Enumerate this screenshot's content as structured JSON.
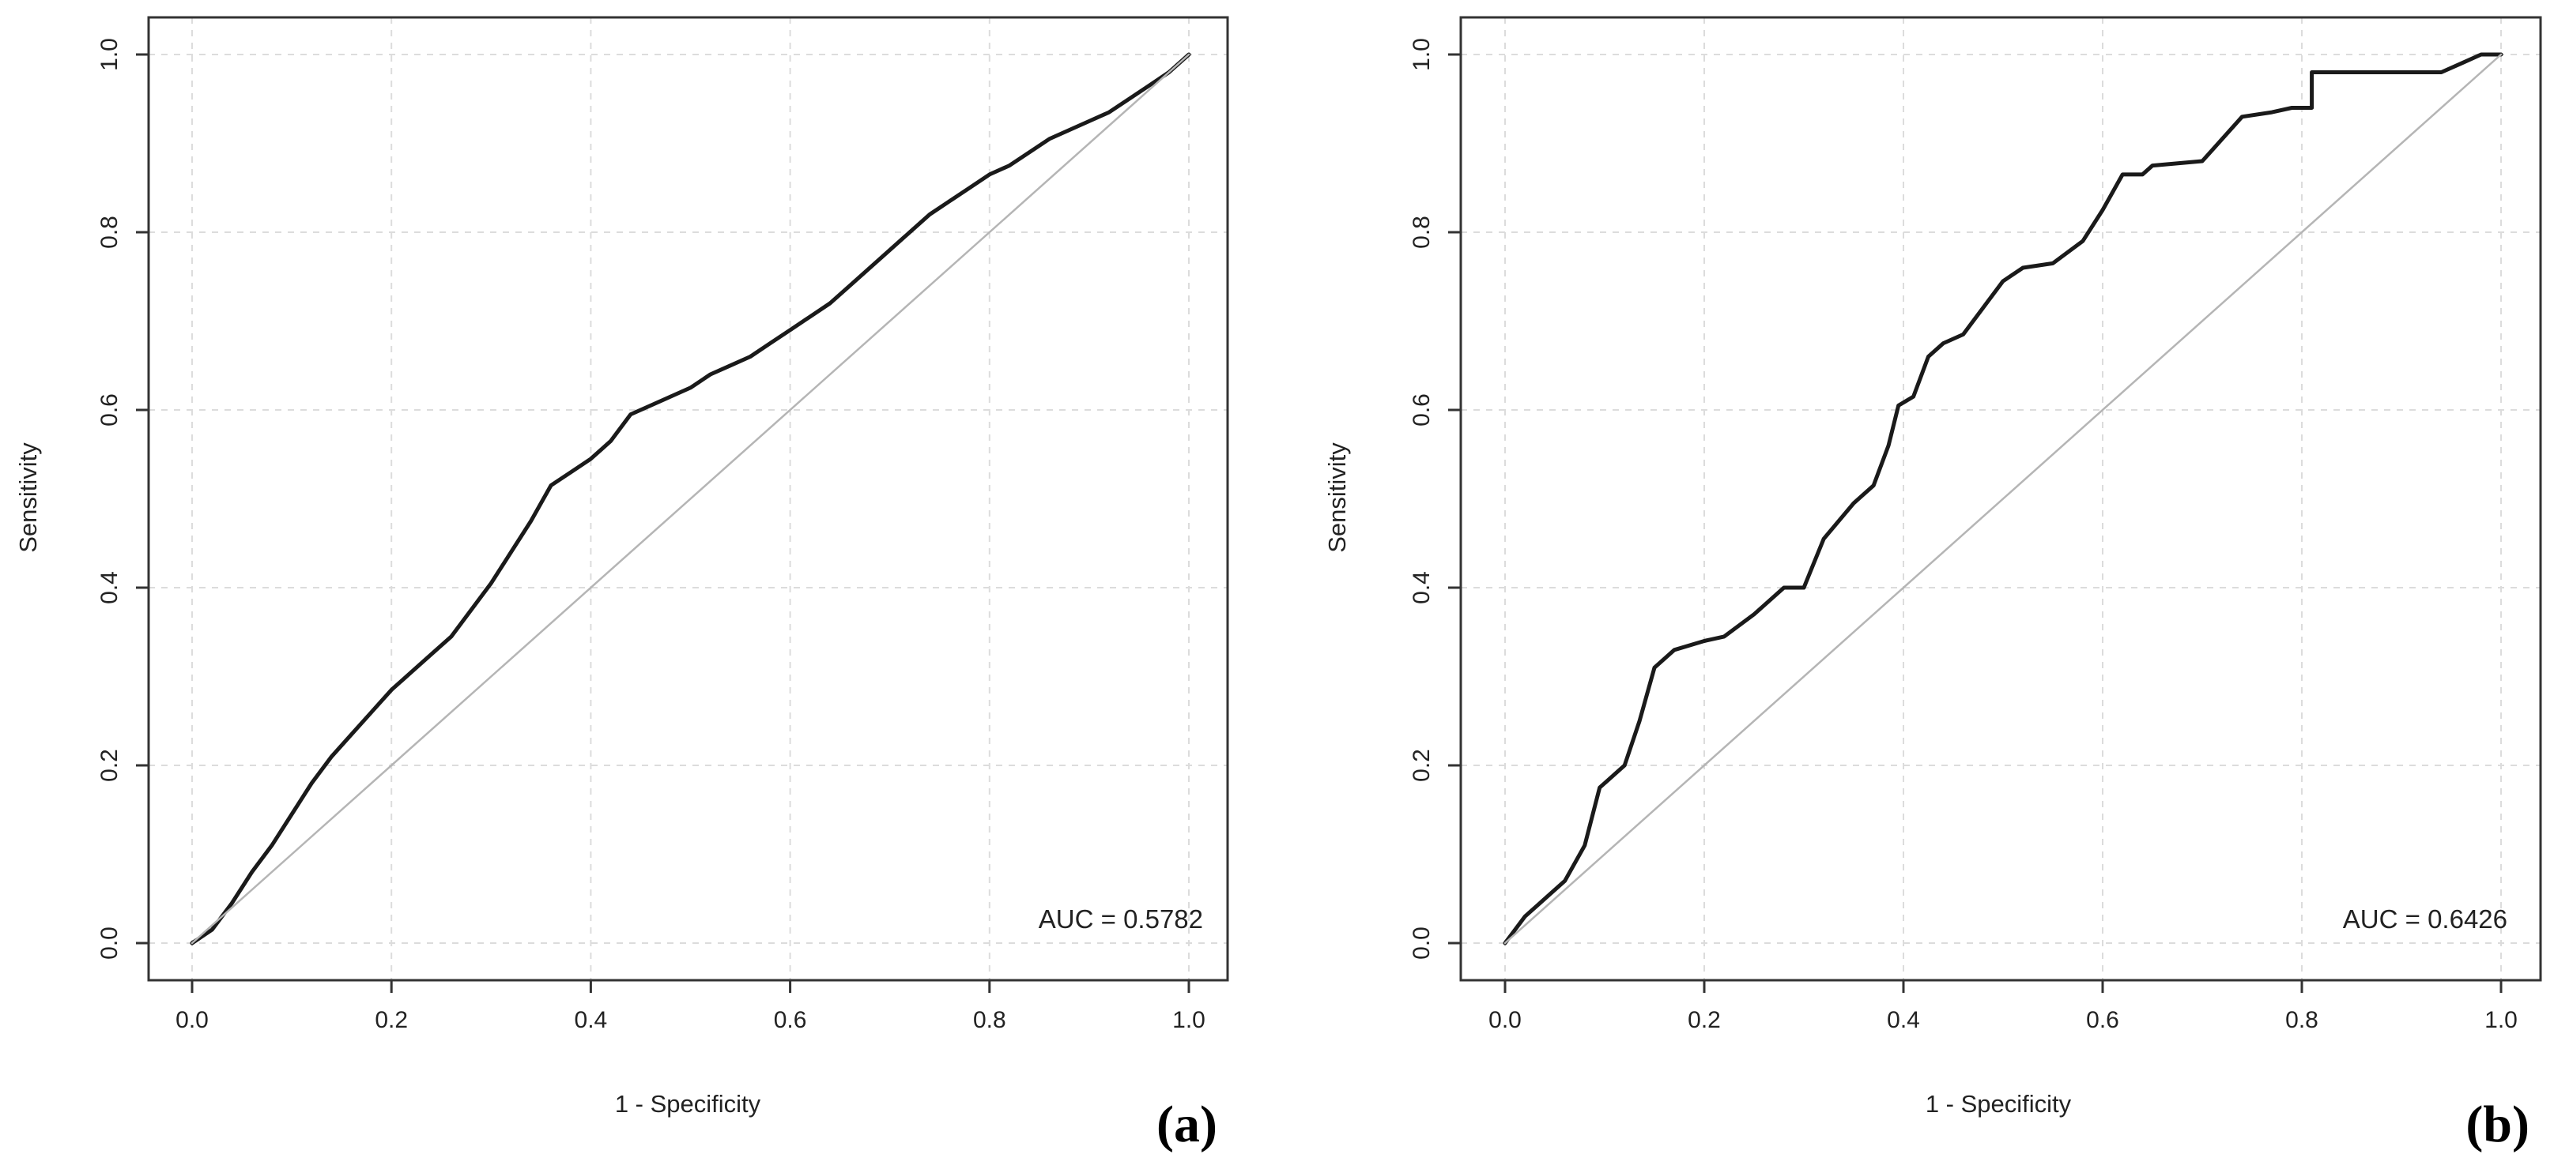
{
  "chart_data": [
    {
      "type": "line",
      "panel_label": "(a)",
      "xlabel": "1 - Specificity",
      "ylabel": "Sensitivity",
      "xlim": [
        0,
        1
      ],
      "ylim": [
        0,
        1
      ],
      "x_ticks": [
        "0.0",
        "0.2",
        "0.4",
        "0.6",
        "0.8",
        "1.0"
      ],
      "y_ticks": [
        "0.0",
        "0.2",
        "0.4",
        "0.6",
        "0.8",
        "1.0"
      ],
      "grid": true,
      "annotation": "AUC = 0.5782",
      "auc": 0.5782,
      "series": [
        {
          "name": "ROC curve",
          "color": "#1a1a1a",
          "x": [
            0,
            0.02,
            0.04,
            0.06,
            0.08,
            0.1,
            0.12,
            0.14,
            0.16,
            0.18,
            0.2,
            0.22,
            0.24,
            0.26,
            0.28,
            0.3,
            0.32,
            0.34,
            0.36,
            0.38,
            0.4,
            0.42,
            0.44,
            0.46,
            0.48,
            0.5,
            0.52,
            0.54,
            0.56,
            0.58,
            0.6,
            0.62,
            0.64,
            0.66,
            0.68,
            0.7,
            0.72,
            0.74,
            0.76,
            0.78,
            0.8,
            0.82,
            0.84,
            0.86,
            0.88,
            0.9,
            0.92,
            0.94,
            0.96,
            0.98,
            1.0
          ],
          "y": [
            0,
            0.015,
            0.045,
            0.08,
            0.11,
            0.145,
            0.18,
            0.21,
            0.235,
            0.26,
            0.285,
            0.305,
            0.325,
            0.345,
            0.375,
            0.405,
            0.44,
            0.475,
            0.515,
            0.53,
            0.545,
            0.565,
            0.595,
            0.605,
            0.615,
            0.625,
            0.64,
            0.65,
            0.66,
            0.675,
            0.69,
            0.705,
            0.72,
            0.74,
            0.76,
            0.78,
            0.8,
            0.82,
            0.835,
            0.85,
            0.865,
            0.875,
            0.89,
            0.905,
            0.915,
            0.925,
            0.935,
            0.95,
            0.965,
            0.98,
            1.0
          ]
        },
        {
          "name": "Reference line",
          "color": "#b5b5b5",
          "x": [
            0,
            1
          ],
          "y": [
            0,
            1
          ]
        }
      ]
    },
    {
      "type": "line",
      "panel_label": "(b)",
      "xlabel": "1 - Specificity",
      "ylabel": "Sensitivity",
      "xlim": [
        0,
        1
      ],
      "ylim": [
        0,
        1
      ],
      "x_ticks": [
        "0.0",
        "0.2",
        "0.4",
        "0.6",
        "0.8",
        "1.0"
      ],
      "y_ticks": [
        "0.0",
        "0.2",
        "0.4",
        "0.6",
        "0.8",
        "1.0"
      ],
      "grid": true,
      "annotation": "AUC = 0.6426",
      "auc": 0.6426,
      "series": [
        {
          "name": "ROC curve",
          "color": "#1a1a1a",
          "x": [
            0,
            0.02,
            0.04,
            0.06,
            0.08,
            0.095,
            0.11,
            0.12,
            0.135,
            0.15,
            0.17,
            0.2,
            0.22,
            0.25,
            0.28,
            0.3,
            0.32,
            0.35,
            0.37,
            0.385,
            0.395,
            0.41,
            0.425,
            0.44,
            0.46,
            0.48,
            0.5,
            0.52,
            0.55,
            0.58,
            0.6,
            0.62,
            0.64,
            0.65,
            0.7,
            0.74,
            0.77,
            0.79,
            0.81,
            0.81,
            0.94,
            0.96,
            0.98,
            1.0
          ],
          "y": [
            0,
            0.03,
            0.05,
            0.07,
            0.11,
            0.175,
            0.19,
            0.2,
            0.25,
            0.31,
            0.33,
            0.34,
            0.345,
            0.37,
            0.4,
            0.4,
            0.455,
            0.495,
            0.515,
            0.56,
            0.605,
            0.615,
            0.66,
            0.675,
            0.685,
            0.715,
            0.745,
            0.76,
            0.765,
            0.79,
            0.825,
            0.865,
            0.865,
            0.875,
            0.88,
            0.93,
            0.935,
            0.94,
            0.94,
            0.98,
            0.98,
            0.99,
            1.0,
            1.0
          ]
        },
        {
          "name": "Reference line",
          "color": "#b5b5b5",
          "x": [
            0,
            1
          ],
          "y": [
            0,
            1
          ]
        }
      ]
    }
  ]
}
